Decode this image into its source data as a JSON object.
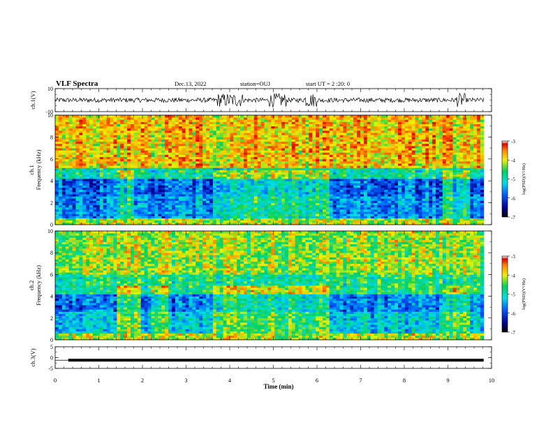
{
  "header": {
    "title": "VLF Spectra",
    "date": "Dec.13, 2022",
    "station": "station=OUJ",
    "start_ut": "start UT =  2 :20: 0"
  },
  "chart_data": [
    {
      "type": "line",
      "panel": "ch1-waveform",
      "ylabel": "ch.1(V)",
      "ylim": [
        -10,
        10
      ],
      "yticks": [
        "10",
        "-10"
      ],
      "color": "#000000",
      "description_values": {
        "x_range_min": [
          0,
          9.82
        ],
        "typical_amplitude_v": 2,
        "burst_intervals_min": [
          [
            3.7,
            4.3
          ],
          [
            4.9,
            5.3
          ],
          [
            5.7,
            6.0
          ],
          [
            9.2,
            9.4
          ]
        ],
        "burst_amplitude_v": 6
      }
    },
    {
      "type": "heatmap",
      "panel": "ch1-spectrogram",
      "ylabel": "ch.1\nFrequency (kHz)",
      "ylim": [
        0,
        10
      ],
      "yticks": [
        "0",
        "2",
        "4",
        "6",
        "8",
        "10"
      ],
      "colorbar": {
        "label": "log(PSD)(V²/Hz)",
        "range": [
          -7,
          -3
        ],
        "ticks": [
          "-3",
          "-4",
          "-5",
          "-6",
          "-7"
        ]
      },
      "bands_log_psd": [
        {
          "f": [
            0,
            0.6
          ],
          "v": -4.3
        },
        {
          "f": [
            0.6,
            2.6
          ],
          "v": -6.0
        },
        {
          "f": [
            2.6,
            4.2
          ],
          "v": -6.3
        },
        {
          "f": [
            4.2,
            5.2
          ],
          "v": -5.2
        },
        {
          "f": [
            5.2,
            10
          ],
          "v": -3.9
        }
      ],
      "enhanced_intervals_min": [
        [
          1.4,
          1.8
        ],
        [
          3.6,
          6.3
        ],
        [
          8.9,
          9.5
        ]
      ]
    },
    {
      "type": "heatmap",
      "panel": "ch2-spectrogram",
      "ylabel": "ch.2\nFrequency (kHz)",
      "ylim": [
        0,
        10
      ],
      "yticks": [
        "0",
        "2",
        "4",
        "6",
        "8",
        "10"
      ],
      "colorbar": {
        "label": "log(PSD)(V²/Hz)",
        "range": [
          -7,
          -3
        ],
        "ticks": [
          "-3",
          "-4",
          "-5",
          "-6",
          "-7"
        ]
      },
      "bands_log_psd": [
        {
          "f": [
            0,
            0.6
          ],
          "v": -4.3
        },
        {
          "f": [
            0.6,
            2.6
          ],
          "v": -5.6
        },
        {
          "f": [
            2.6,
            4.2
          ],
          "v": -6.1
        },
        {
          "f": [
            4.2,
            6.0
          ],
          "v": -5.0
        },
        {
          "f": [
            6.0,
            10
          ],
          "v": -4.4
        }
      ],
      "enhanced_intervals_min": [
        [
          1.4,
          2.0
        ],
        [
          2.2,
          2.6
        ],
        [
          3.6,
          6.3
        ],
        [
          8.9,
          9.5
        ]
      ]
    },
    {
      "type": "line",
      "panel": "ch3-signal",
      "ylabel": "ch.3(V)",
      "ylim": [
        -5,
        5
      ],
      "yticks": [
        "5",
        "0",
        "-5"
      ],
      "x": [
        0,
        0.3,
        0.3,
        9.82
      ],
      "y": [
        -1.2,
        -1.2,
        -1.2,
        -1.2
      ],
      "color": "#000000"
    }
  ],
  "xaxis": {
    "label": "Time (min)",
    "xlim": [
      0,
      10
    ],
    "ticks": [
      "0",
      "1",
      "2",
      "3",
      "4",
      "5",
      "6",
      "7",
      "8",
      "9",
      "10"
    ]
  },
  "colors": {
    "low": "#000090",
    "mid": "#00d060",
    "high": "#e00000",
    "frame": "#000000"
  }
}
